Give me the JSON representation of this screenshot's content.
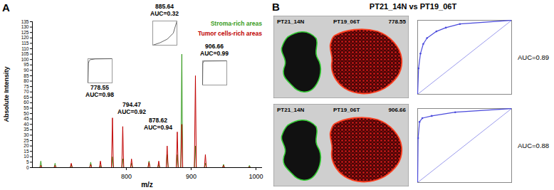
{
  "chart_data": [
    {
      "panel": "A",
      "type": "line",
      "x_label": "m/z",
      "y_label": "Absolute Intensity",
      "x": [
        660,
        666.5,
        668,
        669.5,
        688.5,
        690,
        691.5,
        713.5,
        715,
        716.5,
        743.5,
        745,
        746.5,
        758.5,
        760,
        761.5,
        777,
        778.55,
        780,
        793,
        794.47,
        796,
        806.5,
        808,
        809.5,
        833.5,
        835,
        836.5,
        848.5,
        850,
        851.5,
        861.5,
        863,
        864.5,
        877,
        878.62,
        880,
        884,
        885.64,
        887,
        905,
        906.66,
        908,
        920.5,
        922,
        923.5,
        948.5,
        950,
        951.5,
        988.5,
        990,
        991.5,
        1005
      ],
      "series": [
        {
          "name": "Stroma-rich areas",
          "color": "#3a9d23",
          "values": [
            0,
            0,
            6,
            0,
            0,
            4,
            0,
            0,
            3,
            0,
            0,
            5,
            0,
            0,
            2,
            0,
            0,
            10,
            0,
            0,
            8,
            0,
            0,
            4,
            0,
            0,
            6,
            0,
            0,
            3,
            0,
            0,
            12,
            0,
            0,
            12,
            0,
            0,
            105,
            0,
            0,
            20,
            0,
            0,
            4,
            0,
            0,
            3,
            0,
            0,
            2,
            0,
            0
          ]
        },
        {
          "name": "Tumor cells-rich areas",
          "color": "#c00000",
          "values": [
            0,
            0,
            2,
            0,
            0,
            2,
            0,
            0,
            4,
            0,
            0,
            3,
            0,
            0,
            6,
            0,
            0,
            46,
            0,
            0,
            38,
            0,
            0,
            8,
            0,
            0,
            5,
            0,
            0,
            6,
            0,
            0,
            20,
            0,
            0,
            33,
            0,
            0,
            40,
            0,
            0,
            85,
            0,
            0,
            12,
            0,
            0,
            2,
            0,
            0,
            1,
            0,
            0
          ]
        }
      ],
      "xlim": [
        655,
        1010
      ],
      "xticks": [
        800,
        900,
        1000
      ],
      "ylim": [
        0,
        135
      ],
      "yticks": [
        0,
        5,
        10,
        15,
        20,
        25,
        30,
        35,
        40,
        45,
        50,
        55,
        60,
        65,
        70,
        75,
        80,
        85,
        90,
        95,
        100,
        105,
        110,
        115,
        120,
        125,
        130,
        135
      ],
      "legend": "top-right",
      "annotations": [
        {
          "x": 885.64,
          "auc_label": "AUC=0.32",
          "roc_fpr": [
            0,
            0.3,
            0.6,
            0.85,
            1
          ],
          "roc_tpr": [
            0,
            0.1,
            0.25,
            0.5,
            1
          ],
          "xlim": [
            0,
            1
          ],
          "ylim": [
            0,
            1
          ]
        },
        {
          "x": 778.55,
          "auc_label": "AUC=0.98",
          "roc_fpr": [
            0,
            0.02,
            0.05,
            0.1,
            0.3,
            1
          ],
          "roc_tpr": [
            0,
            0.8,
            0.92,
            0.96,
            0.99,
            1
          ],
          "xlim": [
            0,
            1
          ],
          "ylim": [
            0,
            1
          ]
        },
        {
          "x": 794.47,
          "auc_label": "AUC=0.92"
        },
        {
          "x": 878.62,
          "auc_label": "AUC=0.94"
        },
        {
          "x": 906.66,
          "auc_label": "AUC=0.99",
          "roc_fpr": [
            0,
            0.01,
            0.05,
            1
          ],
          "roc_tpr": [
            0,
            0.9,
            0.99,
            1
          ],
          "xlim": [
            0,
            1
          ],
          "ylim": [
            0,
            1
          ]
        }
      ]
    },
    {
      "panel": "B",
      "title": "PT21_14N vs PT19_06T",
      "type": "line",
      "image": {
        "labels": [
          "PT21_14N",
          "PT19_06T"
        ],
        "mz": 778.55
      },
      "x": [
        0,
        0.01,
        0.03,
        0.06,
        0.1,
        0.2,
        0.3,
        0.45,
        1
      ],
      "values": [
        0,
        0.35,
        0.55,
        0.68,
        0.76,
        0.85,
        0.9,
        0.95,
        1
      ],
      "color": "#4b4bdc",
      "reference_x": [
        0,
        1
      ],
      "reference_y": [
        0,
        1
      ],
      "xlim": [
        0,
        1
      ],
      "ylim": [
        0,
        1
      ],
      "tick_labels": false,
      "annotation": "AUC=0.89"
    },
    {
      "type": "line",
      "image": {
        "labels": [
          "PT21_14N",
          "PT19_06T"
        ],
        "mz": 906.66
      },
      "x": [
        0,
        0.005,
        0.02,
        0.05,
        0.15,
        0.4,
        1
      ],
      "values": [
        0,
        0.6,
        0.82,
        0.87,
        0.9,
        0.95,
        1
      ],
      "color": "#4b4bdc",
      "reference_x": [
        0,
        1
      ],
      "reference_y": [
        0,
        1
      ],
      "xlim": [
        0,
        1
      ],
      "ylim": [
        0,
        1
      ],
      "tick_labels": false,
      "annotation": "AUC=0.88"
    }
  ]
}
